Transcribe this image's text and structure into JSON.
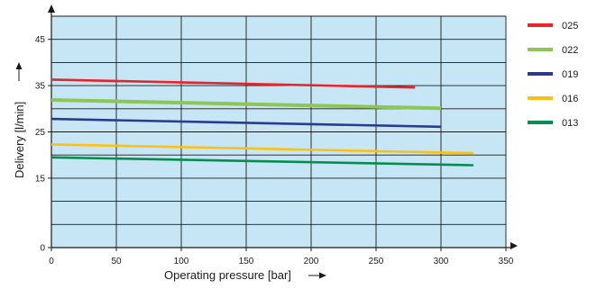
{
  "chart_data": {
    "type": "line",
    "xlabel": "Operating pressure [bar]",
    "ylabel": "Delivery [l/min]",
    "xlim": [
      0,
      350
    ],
    "xticks": [
      0,
      50,
      100,
      150,
      200,
      250,
      300,
      350
    ],
    "xtick_labels": [
      "0",
      "50",
      "100",
      "150",
      "200",
      "250",
      "300",
      "350"
    ],
    "ylim": [
      0,
      50
    ],
    "yticks": [
      0,
      15,
      25,
      35,
      45
    ],
    "ytick_labels": [
      "0",
      "15",
      "25",
      "35",
      "45"
    ],
    "grid": true,
    "plot_background": "#c6e6f5",
    "legend_position": "right",
    "series": [
      {
        "name": "025",
        "color": "#e8232a",
        "x": [
          0,
          280
        ],
        "y": [
          36.3,
          34.6
        ]
      },
      {
        "name": "022",
        "color": "#8cc657",
        "x": [
          0,
          300
        ],
        "y": [
          31.9,
          30.1
        ]
      },
      {
        "name": "019",
        "color": "#2b3990",
        "x": [
          0,
          300
        ],
        "y": [
          27.8,
          26.1
        ]
      },
      {
        "name": "016",
        "color": "#fdc010",
        "x": [
          0,
          325
        ],
        "y": [
          22.3,
          20.4
        ]
      },
      {
        "name": "013",
        "color": "#078c4f",
        "x": [
          0,
          325
        ],
        "y": [
          19.5,
          17.8
        ]
      }
    ]
  }
}
